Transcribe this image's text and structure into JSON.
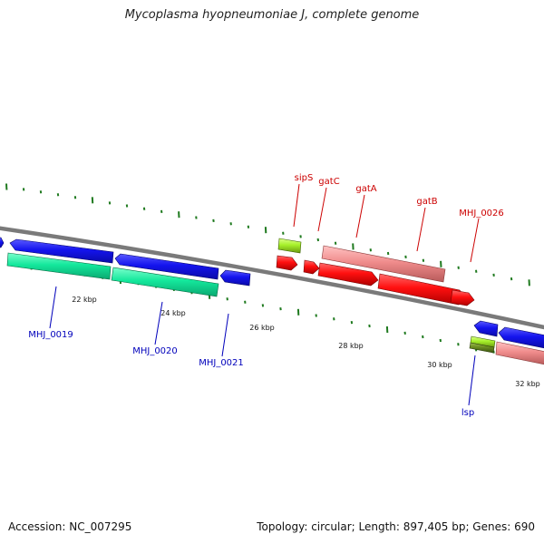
{
  "title": "Mycoplasma hyopneumoniae J, complete genome",
  "footer": {
    "accession_label": "Accession:",
    "accession": "NC_007295",
    "topology_label": "Topology:",
    "topology": "circular",
    "length_label": "Length:",
    "length": "897,405 bp",
    "genes_label": "Genes:",
    "genes": "690"
  },
  "scale_labels": [
    "22 kbp",
    "24 kbp",
    "26 kbp",
    "28 kbp",
    "30 kbp",
    "32 kbp"
  ],
  "gene_labels": {
    "red": [
      "sipS",
      "gatC",
      "gatA",
      "gatB",
      "MHJ_0026"
    ],
    "blue": [
      "MHJ_0019",
      "MHJ_0020",
      "MHJ_0021",
      "lsp"
    ]
  },
  "colors": {
    "blue_gene": "#1414ee",
    "green_gene": "#14e89c",
    "red_gene": "#ff1010",
    "pink_gene": "#f08c8c",
    "lime_gene": "#a6f02a",
    "olive_gene": "#6a8c20",
    "backbone": "#7a7a7a",
    "tick": "#1f7a1f",
    "red_label": "#cc0000",
    "blue_label": "#0000bb"
  }
}
